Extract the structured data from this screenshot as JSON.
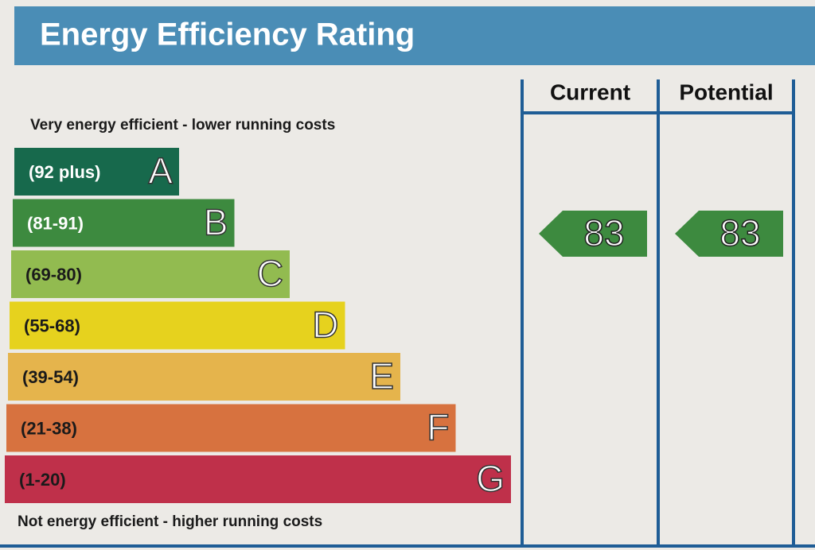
{
  "header": {
    "title": "Energy Efficiency Rating"
  },
  "top_note": "Very energy efficient - lower running costs",
  "bottom_note": "Not energy efficient - higher running costs",
  "bands": [
    {
      "range": "(92 plus)",
      "letter": "A",
      "color": "#17694c"
    },
    {
      "range": "(81-91)",
      "letter": "B",
      "color": "#3d8a3f"
    },
    {
      "range": "(69-80)",
      "letter": "C",
      "color": "#92bb50"
    },
    {
      "range": "(55-68)",
      "letter": "D",
      "color": "#e6d21e"
    },
    {
      "range": "(39-54)",
      "letter": "E",
      "color": "#e5b44c"
    },
    {
      "range": "(21-38)",
      "letter": "F",
      "color": "#d7723f"
    },
    {
      "range": "(1-20)",
      "letter": "G",
      "color": "#bf304a"
    }
  ],
  "columns": [
    {
      "header": "Current",
      "value": "83",
      "color": "#3d8a3f"
    },
    {
      "header": "Potential",
      "value": "83",
      "color": "#3d8a3f"
    }
  ]
}
